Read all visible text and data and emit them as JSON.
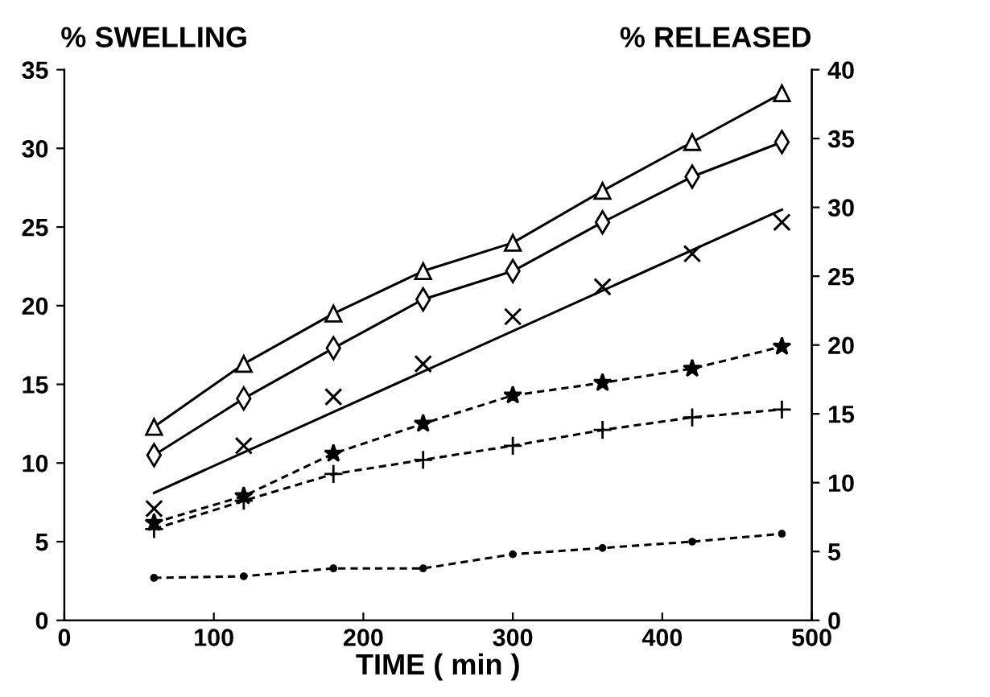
{
  "chart_data": {
    "type": "line",
    "xlabel": "TIME ( min )",
    "ylabel": "% SWELLING",
    "y2label": "% RELEASED",
    "x": [
      60,
      120,
      180,
      240,
      300,
      360,
      420,
      480
    ],
    "series": [
      {
        "color": "#000000",
        "marker": "triangle",
        "line_style": "solid",
        "values": [
          12.3,
          16.3,
          19.5,
          22.2,
          24.0,
          27.3,
          30.4,
          33.5
        ]
      },
      {
        "color": "#000000",
        "marker": "diamond",
        "line_style": "solid",
        "values": [
          10.5,
          14.1,
          17.3,
          20.4,
          22.2,
          25.3,
          28.2,
          30.4
        ]
      },
      {
        "type": "scatter",
        "color": "#000000",
        "marker": "x",
        "values": [
          7.1,
          11.1,
          14.2,
          16.3,
          19.3,
          21.2,
          23.3,
          25.3
        ]
      },
      {
        "type": "line",
        "color": "#000000",
        "marker": "none",
        "line_style": "solid",
        "x": [
          60,
          480
        ],
        "values": [
          8.1,
          26.1
        ]
      },
      {
        "color": "#000000",
        "marker": "star",
        "line_style": "dashed",
        "values": [
          6.2,
          7.9,
          10.6,
          12.5,
          14.3,
          15.1,
          16.0,
          17.4
        ]
      },
      {
        "color": "#000000",
        "marker": "plus",
        "line_style": "dashed",
        "values": [
          5.8,
          7.6,
          9.3,
          10.2,
          11.1,
          12.1,
          12.9,
          13.4
        ]
      },
      {
        "color": "#000000",
        "marker": "circle",
        "line_style": "dashed",
        "values": [
          2.7,
          2.8,
          3.3,
          3.3,
          4.2,
          4.6,
          5.0,
          5.5
        ]
      }
    ],
    "xlim": [
      0,
      500
    ],
    "xticks": [
      0,
      100,
      200,
      300,
      400,
      500
    ],
    "ylim": [
      0,
      35
    ],
    "yticks": [
      0,
      5,
      10,
      15,
      20,
      25,
      30,
      35
    ],
    "y2lim": [
      0,
      40
    ],
    "y2ticks": [
      0,
      5,
      10,
      15,
      20,
      25,
      30,
      35,
      40
    ],
    "grid": false,
    "legend": false
  }
}
